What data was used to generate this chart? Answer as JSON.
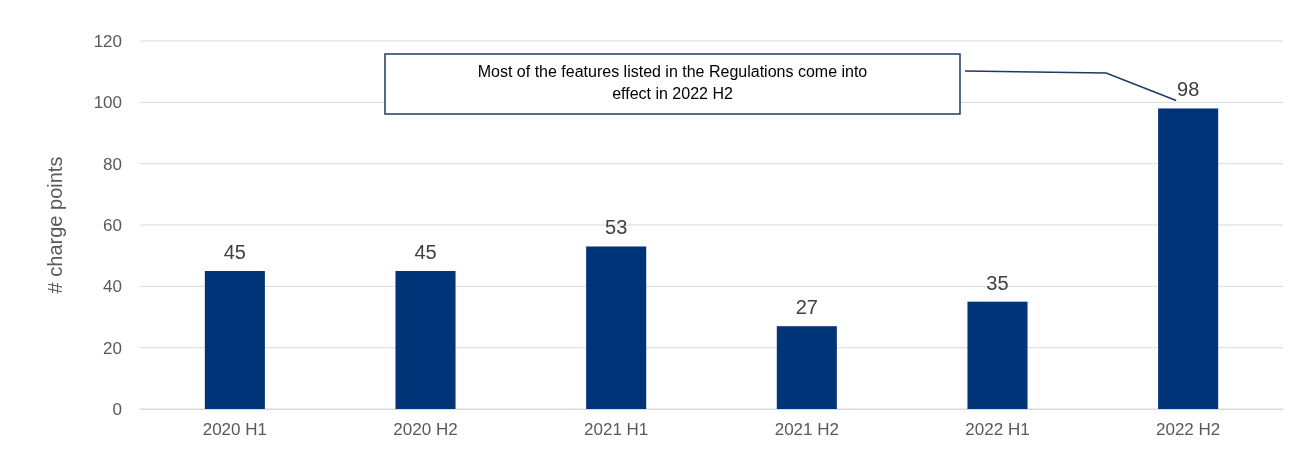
{
  "chart_data": {
    "type": "bar",
    "ylabel": "# charge points",
    "categories": [
      "2020 H1",
      "2020 H2",
      "2021 H1",
      "2021 H2",
      "2022 H1",
      "2022 H2"
    ],
    "values": [
      45,
      45,
      53,
      27,
      35,
      98
    ],
    "color": "#003478",
    "ylim": [
      0,
      120
    ],
    "yticks": [
      0,
      20,
      40,
      60,
      80,
      100,
      120
    ],
    "grid": "y",
    "data_labels": true,
    "annotations": [
      "Most of the features listed in the Regulations come into effect in 2022 H2"
    ]
  }
}
